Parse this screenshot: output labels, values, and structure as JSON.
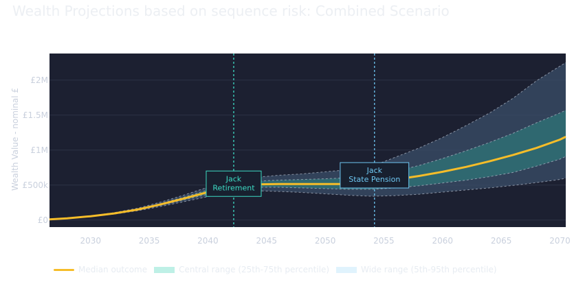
{
  "chart_data": {
    "type": "area",
    "title": "Wealth Projections based on sequence risk: Combined Scenario",
    "ylabel": "Wealth Value - nominal £",
    "xlim": [
      2026.5,
      2070.5
    ],
    "ylim": [
      -100000,
      2380000
    ],
    "x_ticks": [
      2030,
      2035,
      2040,
      2045,
      2050,
      2055,
      2060,
      2065,
      2070
    ],
    "y_ticks": [
      {
        "value": 0,
        "label": "£0"
      },
      {
        "value": 500000,
        "label": "£500k"
      },
      {
        "value": 1000000,
        "label": "£1M"
      },
      {
        "value": 1500000,
        "label": "£1.5M"
      },
      {
        "value": 2000000,
        "label": "£2M"
      }
    ],
    "grid": true,
    "legend_position": "bottom-left",
    "x": [
      2026.5,
      2028,
      2030,
      2032,
      2034,
      2036,
      2038,
      2040,
      2042,
      2044,
      2046,
      2048,
      2050,
      2052,
      2054,
      2056,
      2058,
      2060,
      2062,
      2064,
      2066,
      2068,
      2070,
      2070.5
    ],
    "series": [
      {
        "name": "Median outcome",
        "color": "#f6bd29",
        "values": [
          10000,
          25000,
          55000,
          95000,
          150000,
          225000,
          310000,
          400000,
          480000,
          510000,
          515000,
          515000,
          515000,
          515000,
          530000,
          580000,
          630000,
          690000,
          760000,
          840000,
          930000,
          1030000,
          1150000,
          1190000
        ]
      },
      {
        "name": "Central range (25th-75th percentile)",
        "color": "#44d3b7",
        "lower": [
          10000,
          24000,
          53000,
          91000,
          143000,
          212000,
          290000,
          370000,
          440000,
          470000,
          470000,
          460000,
          450000,
          440000,
          440000,
          460000,
          490000,
          530000,
          570000,
          620000,
          680000,
          770000,
          870000,
          910000
        ],
        "upper": [
          10000,
          26000,
          57000,
          99000,
          157000,
          238000,
          330000,
          430000,
          520000,
          555000,
          570000,
          580000,
          590000,
          605000,
          630000,
          700000,
          780000,
          880000,
          990000,
          1110000,
          1240000,
          1390000,
          1530000,
          1570000
        ]
      },
      {
        "name": "Wide range (5th-95th percentile)",
        "color": "#66c3f3",
        "lower": [
          10000,
          22000,
          50000,
          85000,
          133000,
          195000,
          265000,
          335000,
          400000,
          420000,
          410000,
          395000,
          375000,
          355000,
          340000,
          350000,
          370000,
          400000,
          430000,
          460000,
          495000,
          535000,
          580000,
          600000
        ],
        "upper": [
          10000,
          28000,
          61000,
          106000,
          170000,
          258000,
          360000,
          470000,
          570000,
          610000,
          640000,
          660000,
          690000,
          720000,
          770000,
          900000,
          1030000,
          1180000,
          1350000,
          1530000,
          1740000,
          1990000,
          2200000,
          2250000
        ]
      }
    ],
    "annotations": [
      {
        "x": 2042.2,
        "label_lines": [
          "Jack",
          "Retirement"
        ],
        "color": "#3ddbc4"
      },
      {
        "x": 2054.2,
        "label_lines": [
          "Jack",
          "State Pension"
        ],
        "color": "#6ec7f2"
      }
    ]
  }
}
